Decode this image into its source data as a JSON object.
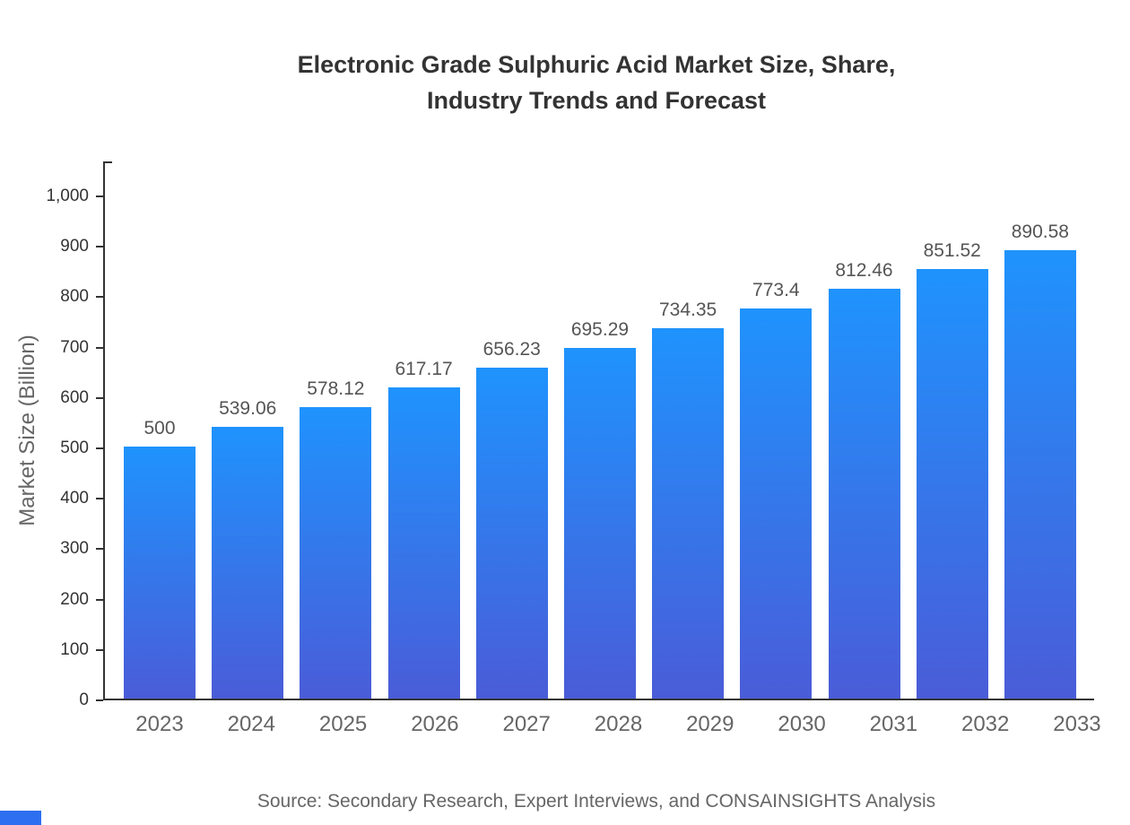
{
  "title": {
    "line1": "Electronic Grade Sulphuric Acid Market Size, Share,",
    "line2": "Industry Trends and Forecast"
  },
  "source": "Source: Secondary Research, Expert Interviews, and CONSAINSIGHTS Analysis",
  "chart_data": {
    "type": "bar",
    "title": "Electronic Grade Sulphuric Acid Market Size, Share, Industry Trends and Forecast",
    "categories": [
      "2023",
      "2024",
      "2025",
      "2026",
      "2027",
      "2028",
      "2029",
      "2030",
      "2031",
      "2032",
      "2033"
    ],
    "values": [
      500,
      539.06,
      578.12,
      617.17,
      656.23,
      695.29,
      734.35,
      773.4,
      812.46,
      851.52,
      890.58
    ],
    "value_labels": [
      "500",
      "539.06",
      "578.12",
      "617.17",
      "656.23",
      "695.29",
      "734.35",
      "773.4",
      "812.46",
      "851.52",
      "890.58"
    ],
    "xlabel": "",
    "ylabel": "Market Size (Billion)",
    "ylim": [
      0,
      1000
    ],
    "ytick_step": 100,
    "ytick_labels": [
      "0",
      "100",
      "200",
      "300",
      "400",
      "500",
      "600",
      "700",
      "800",
      "900",
      "1,000"
    ],
    "grid": false,
    "legend": false,
    "bar_gradient_top": "#1f93fd",
    "bar_gradient_bottom": "#4a5cd8"
  },
  "colors": {
    "title": "#333333",
    "axis": "#333333",
    "tick_label": "#333333",
    "category_label": "#666666",
    "value_label": "#555555",
    "source_text": "#666666",
    "corner_accent": "#2d6ff0"
  }
}
